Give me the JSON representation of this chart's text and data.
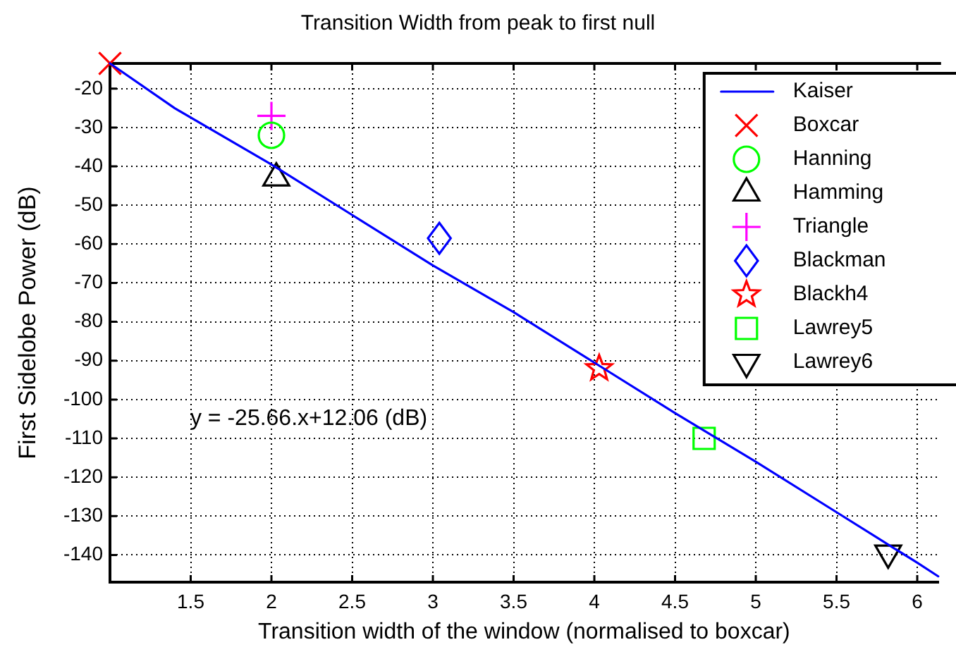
{
  "chart_data": {
    "type": "scatter",
    "title": "Transition Width from peak to first null",
    "xlabel": "Transition width of the window (normalised to boxcar)",
    "ylabel": "First Sidelobe Power (dB)",
    "xlim": [
      1,
      6.13
    ],
    "ylim": [
      -147,
      -13.5
    ],
    "xticks": [
      1.5,
      2,
      2.5,
      3,
      3.5,
      4,
      4.5,
      5,
      5.5,
      6
    ],
    "yticks": [
      -140,
      -130,
      -120,
      -110,
      -100,
      -90,
      -80,
      -70,
      -60,
      -50,
      -40,
      -30,
      -20
    ],
    "grid": true,
    "legend": "top right",
    "annotations": [
      "y = -25.66.x+12.06 (dB)"
    ],
    "series": [
      {
        "name": "Kaiser",
        "type": "line",
        "color": "#0000ff",
        "marker": "none",
        "line_style": "solid",
        "x": [
          1,
          1.4,
          2,
          2.5,
          3,
          3.5,
          4,
          4.5,
          5,
          5.5,
          6,
          6.13
        ],
        "values": [
          -13.5,
          -25,
          -39.5,
          -52.5,
          -65.5,
          -77.5,
          -90.5,
          -103.5,
          -116,
          -129,
          -142,
          -145.5
        ]
      },
      {
        "name": "Boxcar",
        "color": "#ff0000",
        "marker": "x",
        "x": [
          1
        ],
        "values": [
          -13.5
        ]
      },
      {
        "name": "Hanning",
        "color": "#00ff00",
        "marker": "circle",
        "x": [
          2
        ],
        "values": [
          -32
        ]
      },
      {
        "name": "Hamming",
        "color": "#000000",
        "marker": "triangle",
        "x": [
          2.03
        ],
        "values": [
          -43
        ]
      },
      {
        "name": "Triangle",
        "color": "#ff00ff",
        "marker": "cross",
        "x": [
          2
        ],
        "values": [
          -27
        ]
      },
      {
        "name": "Blackman",
        "color": "#0000ff",
        "marker": "diamond",
        "x": [
          3.04
        ],
        "values": [
          -58.5
        ]
      },
      {
        "name": "Blackh4",
        "color": "#ff0000",
        "marker": "star",
        "x": [
          4.03
        ],
        "values": [
          -92
        ]
      },
      {
        "name": "Lawrey5",
        "color": "#00ff00",
        "marker": "square",
        "x": [
          4.68
        ],
        "values": [
          -110
        ]
      },
      {
        "name": "Lawrey6",
        "color": "#000000",
        "marker": "triangle-down",
        "x": [
          5.82
        ],
        "values": [
          -139.5
        ]
      }
    ]
  }
}
